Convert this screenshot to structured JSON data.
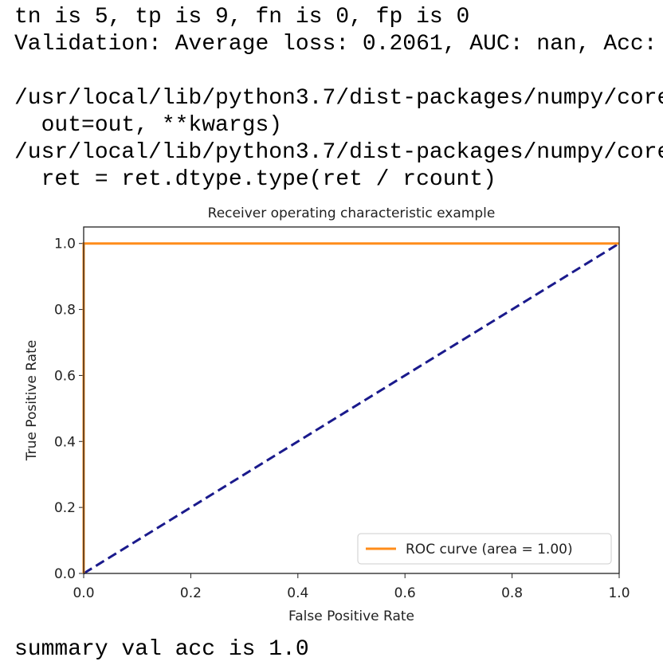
{
  "output_lines": [
    "tn is 5, tp is 9, fn is 0, fp is 0",
    "Validation: Average loss: 0.2061, AUC: nan, Acc:",
    "/usr/local/lib/python3.7/dist-packages/numpy/core",
    "  out=out, **kwargs)",
    "/usr/local/lib/python3.7/dist-packages/numpy/core",
    "  ret = ret.dtype.type(ret / rcount)"
  ],
  "after_lines": [
    "summary val acc is 1.0"
  ],
  "chart_data": {
    "type": "line",
    "title": "Receiver operating characteristic example",
    "x_label": "False Positive Rate",
    "y_label": "True Positive Rate",
    "series": [
      {
        "name": "ROC curve (area = 1.00)",
        "color": "#ff8c1a",
        "x": [
          0,
          0,
          1
        ],
        "values": [
          0,
          1,
          1
        ]
      }
    ],
    "reference_line": {
      "color": "#1a1a8c",
      "dashed": true,
      "x": [
        0,
        1
      ],
      "values": [
        0,
        1
      ]
    },
    "xlim": [
      0,
      1
    ],
    "ylim": [
      0,
      1.05
    ],
    "xticks": [
      {
        "value": 0,
        "label": "0.0"
      },
      0.2,
      0.4,
      0.6,
      0.8,
      {
        "value": 1,
        "label": "1.0"
      }
    ],
    "yticks": [
      {
        "value": 0,
        "label": "0.0"
      },
      0.2,
      0.4,
      0.6,
      0.8,
      {
        "value": 1,
        "label": "1.0"
      }
    ],
    "legend": "lower right"
  }
}
